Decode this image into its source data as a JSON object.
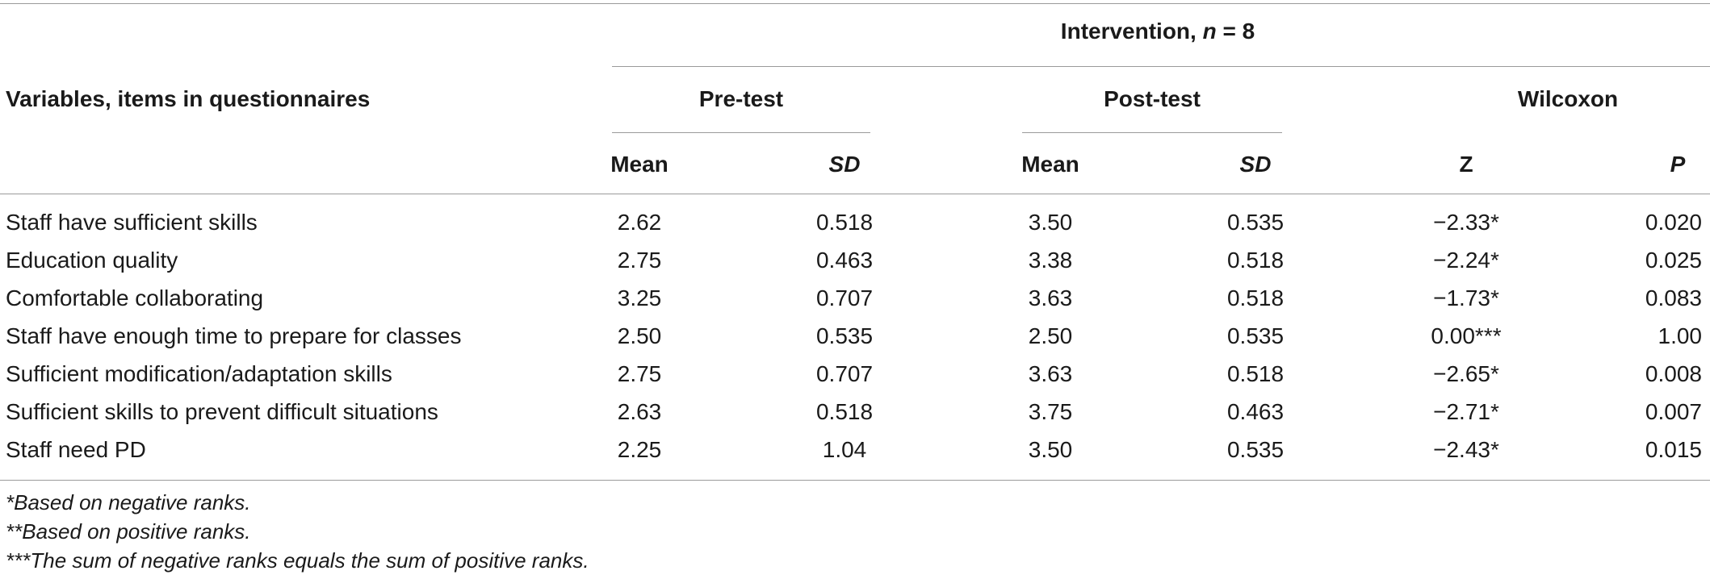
{
  "table": {
    "header": {
      "stub": "Variables, items in questionnaires",
      "group_prefix": "Intervention, ",
      "group_n": "n",
      "group_suffix": " = 8",
      "subgroups": [
        "Pre-test",
        "Post-test",
        "Wilcoxon"
      ],
      "columns": [
        "Mean",
        "SD",
        "Mean",
        "SD",
        "Z",
        "P"
      ]
    },
    "rows": [
      {
        "label": "Staff have sufficient skills",
        "cells": [
          "2.62",
          "0.518",
          "3.50",
          "0.535",
          "−2.33*",
          "0.020"
        ]
      },
      {
        "label": "Education quality",
        "cells": [
          "2.75",
          "0.463",
          "3.38",
          "0.518",
          "−2.24*",
          "0.025"
        ]
      },
      {
        "label": "Comfortable collaborating",
        "cells": [
          "3.25",
          "0.707",
          "3.63",
          "0.518",
          "−1.73*",
          "0.083"
        ]
      },
      {
        "label": "Staff have enough time to prepare for classes",
        "cells": [
          "2.50",
          "0.535",
          "2.50",
          "0.535",
          "0.00***",
          "1.00"
        ]
      },
      {
        "label": "Sufficient modification/adaptation skills",
        "cells": [
          "2.75",
          "0.707",
          "3.63",
          "0.518",
          "−2.65*",
          "0.008"
        ]
      },
      {
        "label": "Sufficient skills to prevent difficult situations",
        "cells": [
          "2.63",
          "0.518",
          "3.75",
          "0.463",
          "−2.71*",
          "0.007"
        ]
      },
      {
        "label": "Staff need PD",
        "cells": [
          "2.25",
          "1.04",
          "3.50",
          "0.535",
          "−2.43*",
          "0.015"
        ]
      }
    ],
    "footnotes": [
      "*Based on negative ranks.",
      "**Based on positive ranks.",
      "***The sum of negative ranks equals the sum of positive ranks."
    ]
  }
}
